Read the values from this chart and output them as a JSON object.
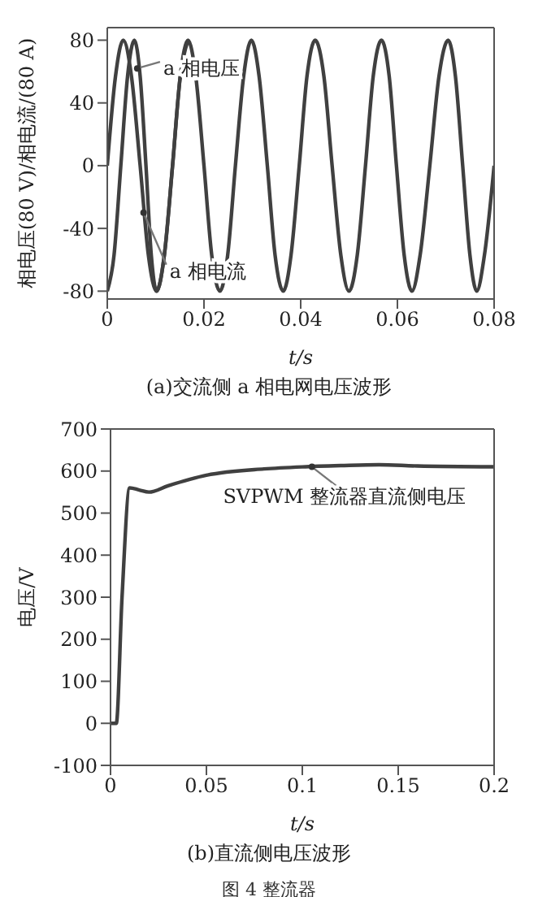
{
  "chart_data": [
    {
      "type": "line",
      "title": "(a)交流侧 a 相电网电压波形",
      "xlabel": "t/s",
      "ylabel": "相电压(80 V)/相电流/(80 A)",
      "xlim": [
        0,
        0.08
      ],
      "xticks": [
        0,
        0.02,
        0.04,
        0.06,
        0.08
      ],
      "ylim": [
        -85,
        88
      ],
      "yticks": [
        -80,
        -40,
        0,
        40,
        80
      ],
      "legend": false,
      "marker": "none",
      "line_style": "solid",
      "series": [
        {
          "color": "#404040",
          "x": [
            0,
            0.0017,
            0.0033,
            0.005,
            0.0068,
            0.0085,
            0.0102,
            0.0118,
            0.0135,
            0.0151,
            0.0167,
            0.0183,
            0.02,
            0.0216,
            0.0233,
            0.0249,
            0.0265,
            0.0282,
            0.0298,
            0.0314,
            0.0331,
            0.0347,
            0.0364,
            0.038,
            0.0397,
            0.0413,
            0.043,
            0.0448,
            0.0465,
            0.0483,
            0.05,
            0.0517,
            0.0534,
            0.055,
            0.0567,
            0.0583,
            0.0598,
            0.0614,
            0.063,
            0.0647,
            0.0667,
            0.0686,
            0.0705,
            0.072,
            0.0735,
            0.075,
            0.0764,
            0.078,
            0.08
          ],
          "values": [
            0,
            57,
            80,
            57,
            0,
            -57,
            -80,
            -57,
            0,
            57,
            80,
            57,
            0,
            -57,
            -80,
            -57,
            0,
            57,
            80,
            57,
            0,
            -57,
            -80,
            -57,
            0,
            57,
            80,
            57,
            0,
            -57,
            -80,
            -57,
            0,
            57,
            80,
            57,
            0,
            -57,
            -80,
            -57,
            0,
            57,
            80,
            57,
            0,
            -57,
            -80,
            -57,
            0
          ]
        },
        {
          "color": "#404040",
          "x": [
            0,
            0.0014,
            0.0028,
            0.0042,
            0.0056,
            0.0068,
            0.008,
            0.0091,
            0.0102,
            0.0118,
            0.0135,
            0.0151,
            0.0167
          ],
          "values": [
            -80,
            -57,
            0,
            57,
            80,
            57,
            0,
            -57,
            -80,
            -57,
            0,
            57,
            80
          ]
        }
      ],
      "annotations": [
        {
          "text": "a 相电压",
          "x": 0.0062,
          "y": 62
        },
        {
          "text": "a 相电流",
          "x": 0.0075,
          "y": -30
        }
      ]
    },
    {
      "type": "line",
      "title": "(b)直流侧电压波形",
      "xlabel": "t/s",
      "ylabel": "电压/V",
      "xlim": [
        0,
        0.2
      ],
      "xticks": [
        0,
        0.05,
        0.1,
        0.15,
        0.2
      ],
      "ylim": [
        -100,
        700
      ],
      "yticks": [
        -100,
        0,
        100,
        200,
        300,
        400,
        500,
        600,
        700
      ],
      "legend": false,
      "marker": "none",
      "line_style": "solid",
      "series": [
        {
          "color": "#404040",
          "x": [
            0,
            0.003,
            0.006,
            0.01,
            0.015,
            0.02,
            0.03,
            0.05,
            0.08,
            0.1,
            0.12,
            0.14,
            0.16,
            0.2
          ],
          "values": [
            0,
            0,
            300,
            560,
            555,
            550,
            565,
            590,
            605,
            610,
            613,
            615,
            612,
            610
          ]
        }
      ],
      "annotations": [
        {
          "text": "SVPWM 整流器直流侧电压",
          "x": 0.105,
          "y": 610
        },
        "图 4  整流器"
      ]
    }
  ]
}
